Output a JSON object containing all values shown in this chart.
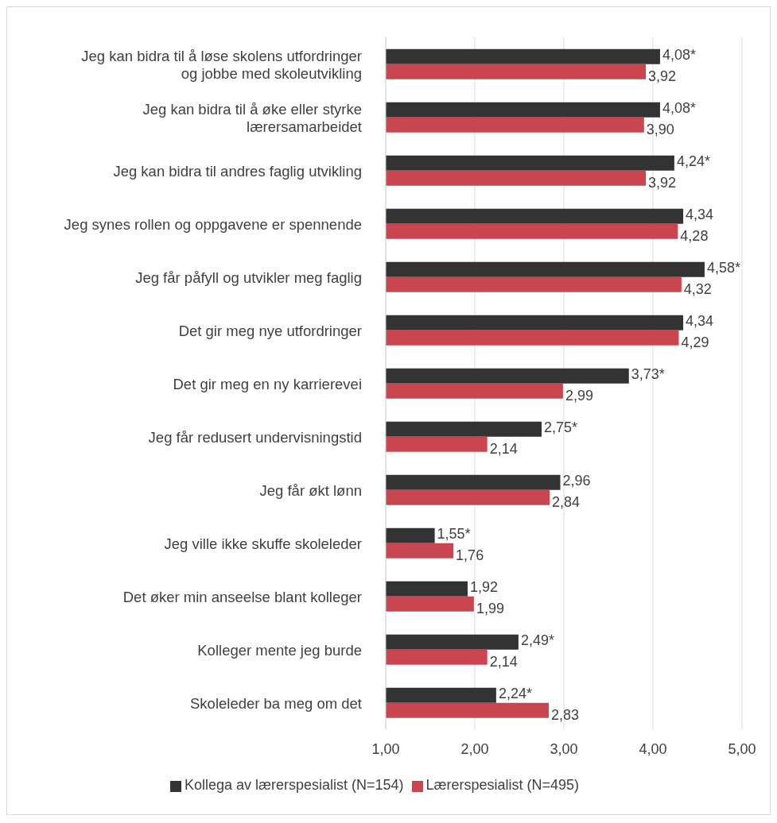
{
  "chart_data": {
    "type": "bar",
    "orientation": "horizontal",
    "categories": [
      "Jeg kan bidra til å løse skolens utfordringer og jobbe med skoleutvikling",
      "Jeg kan bidra til å øke eller styrke lærersamarbeidet",
      "Jeg kan bidra til andres faglig utvikling",
      "Jeg synes rollen og oppgavene er spennende",
      "Jeg får påfyll og utvikler meg faglig",
      "Det gir meg nye utfordringer",
      "Det gir meg en ny karrierevei",
      "Jeg får redusert undervisningstid",
      "Jeg får økt lønn",
      "Jeg ville ikke skuffe skoleleder",
      "Det øker min anseelse blant kolleger",
      "Kolleger mente jeg burde",
      "Skoleleder ba meg om det"
    ],
    "series": [
      {
        "name": "Kollega av lærerspesialist (N=154)",
        "color": "#333333",
        "values": [
          4.08,
          4.08,
          4.24,
          4.34,
          4.58,
          4.34,
          3.73,
          2.75,
          2.96,
          1.55,
          1.92,
          2.49,
          2.24
        ],
        "value_labels": [
          "4,08*",
          "4,08*",
          "4,24*",
          "4,34",
          "4,58*",
          "4,34",
          "3,73*",
          "2,75*",
          "2,96",
          "1,55*",
          "1,92",
          "2,49*",
          "2,24*"
        ]
      },
      {
        "name": "Lærerspesialist (N=495)",
        "color": "#c9454f",
        "values": [
          3.92,
          3.9,
          3.92,
          4.28,
          4.32,
          4.29,
          2.99,
          2.14,
          2.84,
          1.76,
          1.99,
          2.14,
          2.83
        ],
        "value_labels": [
          "3,92",
          "3,90",
          "3,92",
          "4,28",
          "4,32",
          "4,29",
          "2,99",
          "2,14",
          "2,84",
          "1,76",
          "1,99",
          "2,14",
          "2,83"
        ]
      }
    ],
    "xlim": [
      1,
      5
    ],
    "xticks": [
      {
        "value": 1,
        "label": "1,00"
      },
      {
        "value": 2,
        "label": "2,00"
      },
      {
        "value": 3,
        "label": "3,00"
      },
      {
        "value": 4,
        "label": "4,00"
      },
      {
        "value": 5,
        "label": "5,00"
      }
    ],
    "grid": "x",
    "legend": "bottom"
  }
}
